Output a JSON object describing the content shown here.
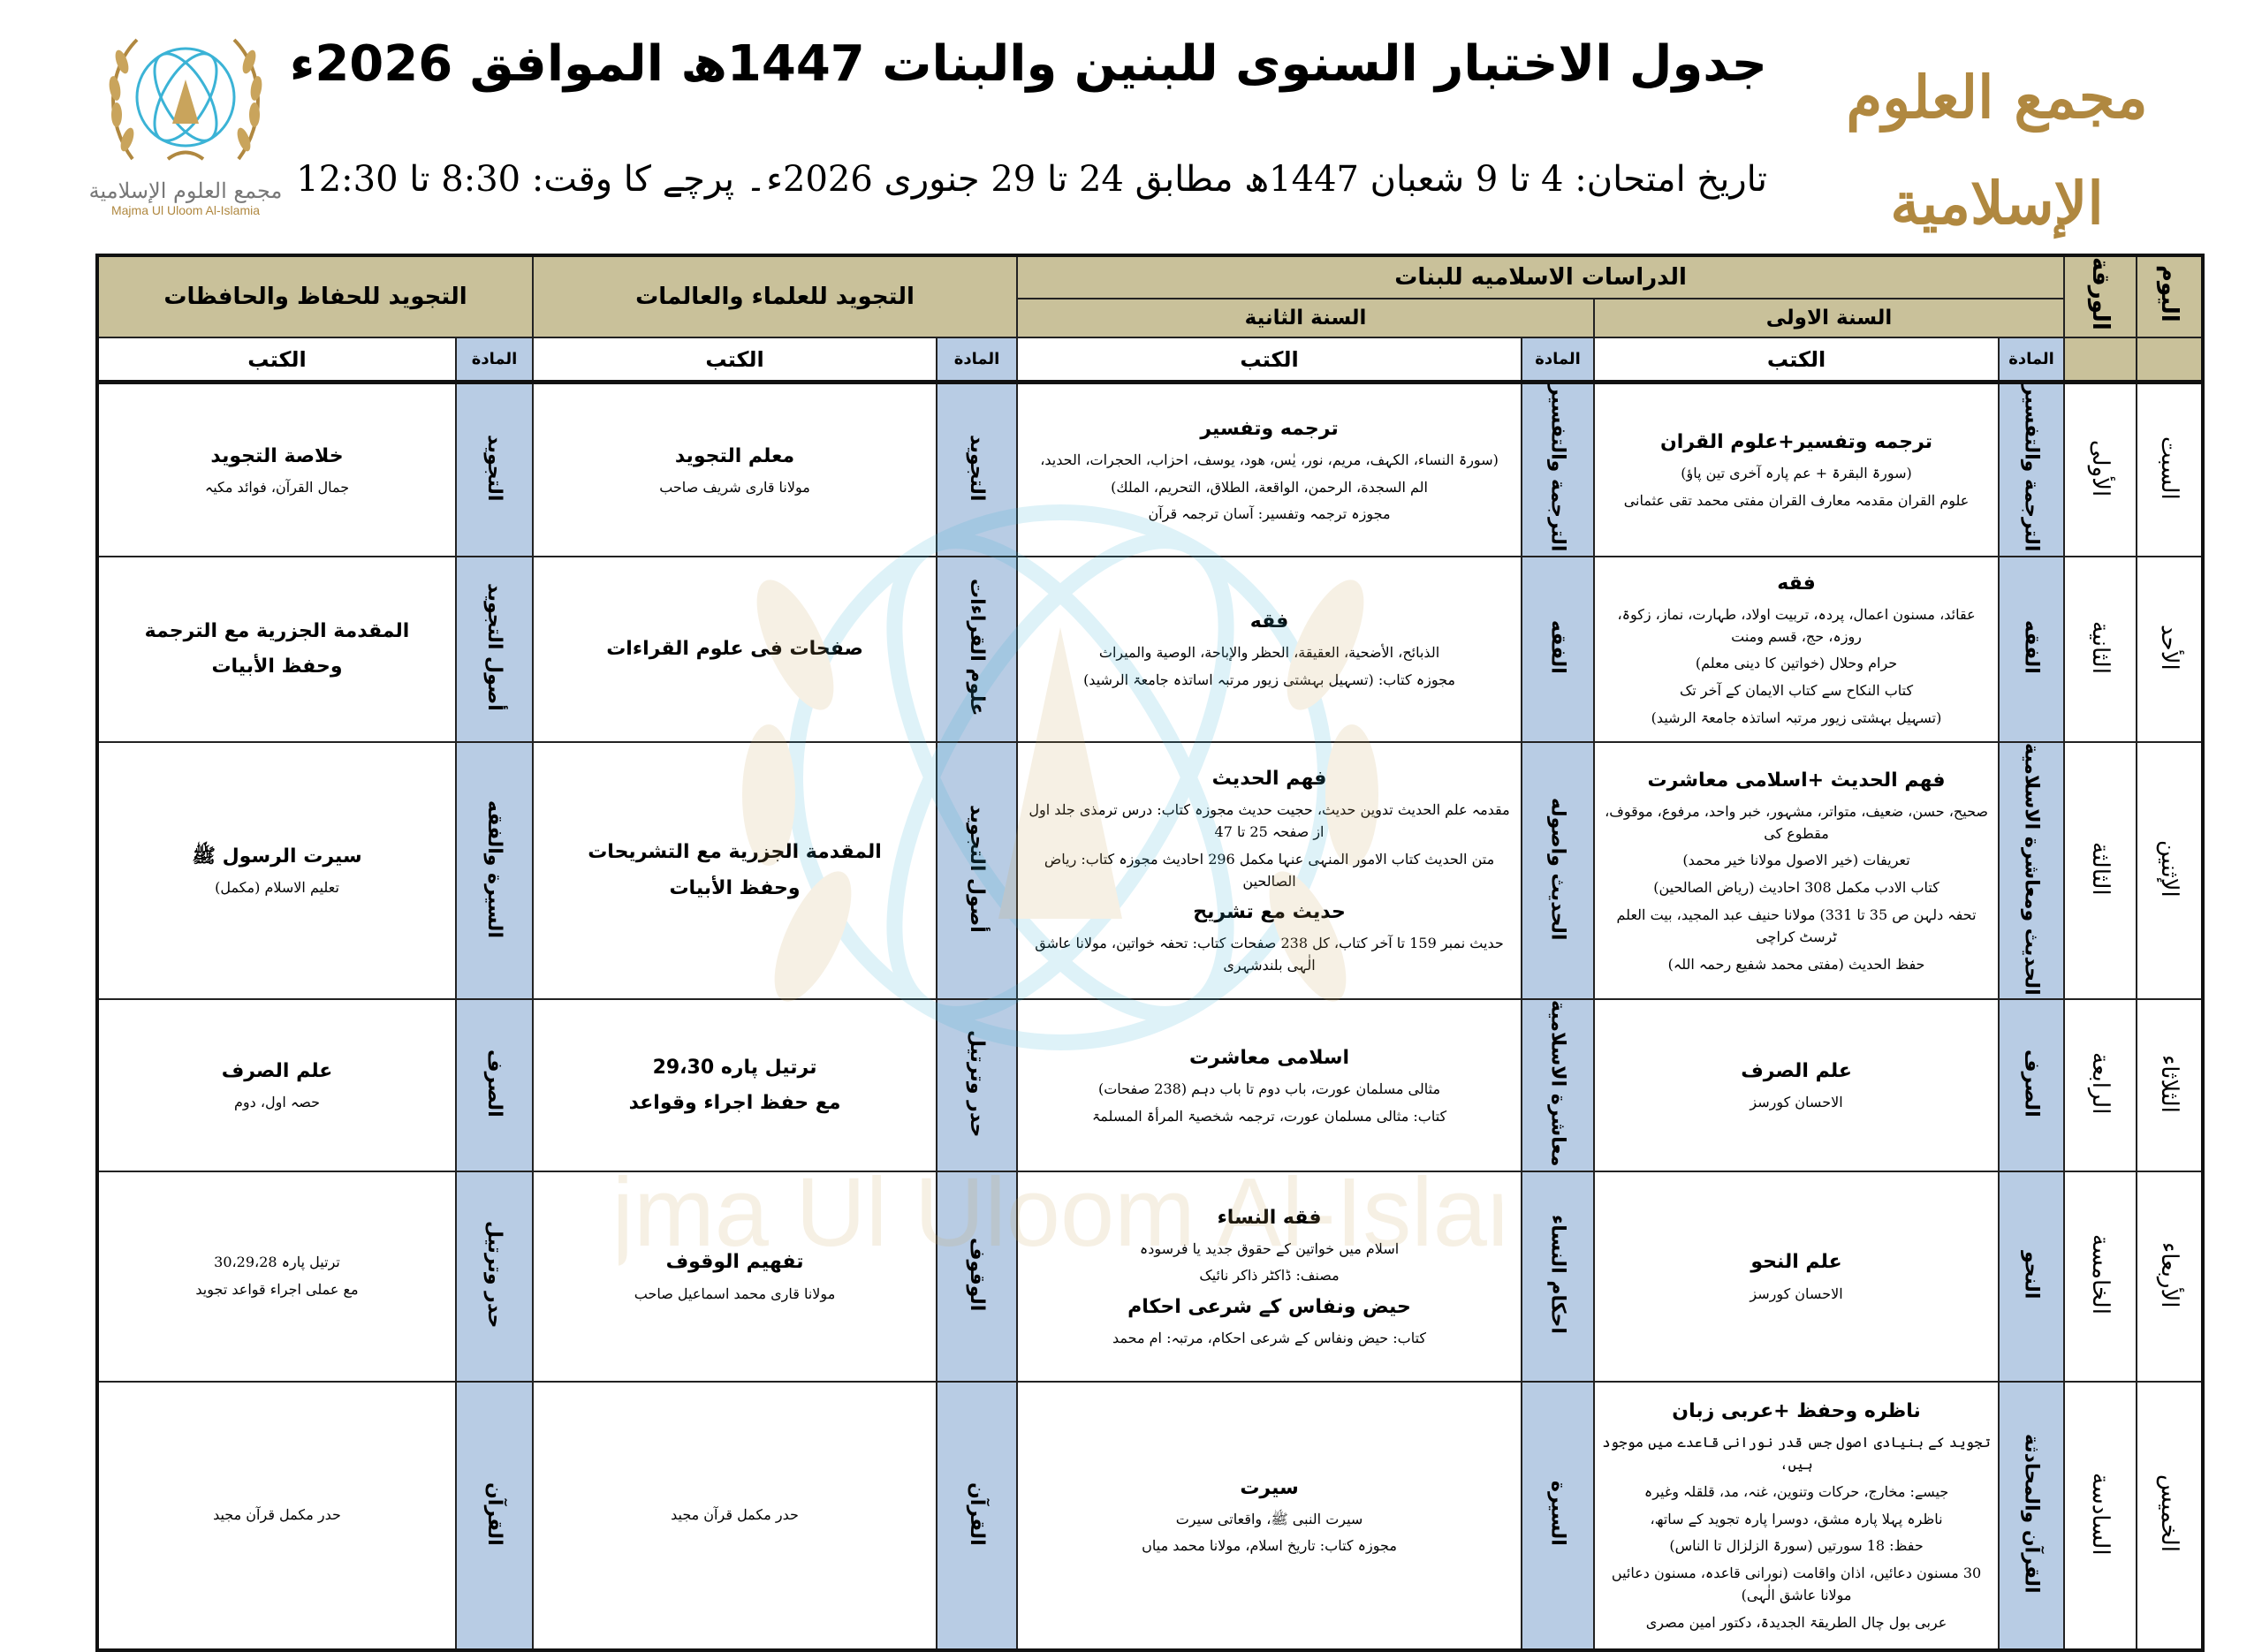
{
  "header": {
    "title": "جدول الاختبار السنوی للبنين والبنات 1447ھ الموافق 2026ء",
    "date_line": "تاریخ امتحان: 4 تا 9 شعبان 1447ھ مطابق 24 تا 29 جنوری 2026ء۔ پرچے کا وقت: 8:30 تا 12:30"
  },
  "logo": {
    "arabic_name": "مجمع العلوم الإسلامية",
    "english_name": "Majma Ul Uloom Al-Islamia",
    "gold": "#b08840",
    "blue": "#1c84c6"
  },
  "table": {
    "day_header": "اليوم",
    "paper_header": "الورقة",
    "group_girls": "الدراسات الاسلاميه للبنات",
    "year1": "السنة الاولى",
    "year2": "السنة الثانية",
    "group_ulama": "التجويد للعلماء والعالمات",
    "group_huffaz": "التجويد للحفاظ والحافظات",
    "subject_header": "المادة",
    "books_header": "الكتب",
    "header_color": "#c9c19a",
    "subject_color": "#b8cce4",
    "rows": [
      {
        "day": "السبت",
        "paper": "الأولى",
        "y1": {
          "subject": "الترجمة والتفسير",
          "books": [
            {
              "text": "ترجمه وتفسير+علوم القران",
              "bold": true
            },
            {
              "text": "(سورۃ البقرۃ + عم پارہ آخری تین پاؤ)",
              "bold": false
            },
            {
              "text": "علوم القران مقدمہ معارف القران مفتی محمد تقی عثمانی",
              "bold": false
            }
          ]
        },
        "y2": {
          "subject": "الترجمة والتفسير",
          "books": [
            {
              "text": "ترجمه وتفسير",
              "bold": true
            },
            {
              "text": "(سورۃ النساء، الکہف، مریم، نور، یٰس، ھود، یوسف، احزاب، الحجرات، الحدید،",
              "bold": false
            },
            {
              "text": "الم السجدة، الرحمن، الواقعة، الطلاق، التحريم، الملك)",
              "bold": false
            },
            {
              "text": "مجوزہ ترجمہ وتفسیر: آسان ترجمہ قرآن",
              "bold": false
            }
          ]
        },
        "ulama": {
          "subject": "التجويد",
          "books": [
            {
              "text": "معلم التجويد",
              "bold": true
            },
            {
              "text": "مولانا قاری شریف صاحب",
              "bold": false
            }
          ]
        },
        "huffaz": {
          "subject": "التجويد",
          "books": [
            {
              "text": "خلاصة التجويد",
              "bold": true
            },
            {
              "text": "جمال القرآن، فوائد مکیہ",
              "bold": false
            }
          ]
        }
      },
      {
        "day": "الأحد",
        "paper": "الثانية",
        "y1": {
          "subject": "الفقه",
          "books": [
            {
              "text": "فقه",
              "bold": true
            },
            {
              "text": "عقائد، مسنون اعمال، پردہ، تربیت اولاد، طہارت، نماز، زکوۃ، روزہ، حج، قسم ومنت",
              "bold": false
            },
            {
              "text": "حرام وحلال (خواتین کا دینی معلم)",
              "bold": false
            },
            {
              "text": "کتاب النکاح سے کتاب الایمان کے آخر تک",
              "bold": false
            },
            {
              "text": "(تسہیل بہشتی زیور مرتبہ اساتذہ جامعۃ الرشید)",
              "bold": false
            }
          ]
        },
        "y2": {
          "subject": "الفقه",
          "books": [
            {
              "text": "فقه",
              "bold": true
            },
            {
              "text": "الذبائح، الأضحية، العقيقة، الحظر والإباحة، الوصية والميراث",
              "bold": false
            },
            {
              "text": "مجوزہ کتاب: (تسہیل بہشتی زیور مرتبہ اساتذہ جامعۃ الرشید)",
              "bold": false
            }
          ]
        },
        "ulama": {
          "subject": "علوم القراءات",
          "books": [
            {
              "text": "صفحات فی علوم القراءات",
              "bold": true
            }
          ]
        },
        "huffaz": {
          "subject": "أصول التجويد",
          "books": [
            {
              "text": "المقدمة الجزرية مع الترجمة",
              "bold": true
            },
            {
              "text": "وحفظ الأبيات",
              "bold": true
            }
          ]
        }
      },
      {
        "day": "الإثنين",
        "paper": "الثالثة",
        "y1": {
          "subject": "الحديث ومعاشرة الاسلامية",
          "books": [
            {
              "text": "فهم الحديث +اسلامی معاشرت",
              "bold": true
            },
            {
              "text": "صحیح، حسن، ضعیف، متواتر، مشہور، خبر واحد، مرفوع، موقوف، مقطوع کی",
              "bold": false
            },
            {
              "text": "تعریفات (خیر الاصول مولانا خیر محمد)",
              "bold": false
            },
            {
              "text": "کتاب الادب مکمل 308 احادیث (ریاض الصالحین)",
              "bold": false
            },
            {
              "text": "تحفہ دلہن ص 35 تا 331) مولانا حنیف عبد المجید، بیت العلم ٹرسٹ کراچی",
              "bold": false
            },
            {
              "text": "حفظ الحدیث (مفتی محمد شفیع رحمہ اللہ)",
              "bold": false
            }
          ]
        },
        "y2": {
          "subject": "الحديث واصوله",
          "books": [
            {
              "text": "فهم الحديث",
              "bold": true
            },
            {
              "text": "مقدمہ علم الحدیث تدوین حدیث، حجیت حدیث مجوزہ کتاب: درس ترمذی جلد اول از صفحہ 25 تا 47",
              "bold": false
            },
            {
              "text": "متن الحدیث کتاب الامور المنہی عنہا مکمل 296 احادیث مجوزہ کتاب: ریاض الصالحین",
              "bold": false
            },
            {
              "text": "حديث مع تشريح",
              "bold": true
            },
            {
              "text": "حدیث نمبر 159 تا آخر کتاب، کل 238 صفحات کتاب: تحفہ خواتین، مولانا عاشق الٰہی بلندشہری",
              "bold": false
            }
          ]
        },
        "ulama": {
          "subject": "أصول التجويد",
          "books": [
            {
              "text": "المقدمة الجزرية مع التشريحات",
              "bold": true
            },
            {
              "text": "وحفظ الأبيات",
              "bold": true
            }
          ]
        },
        "huffaz": {
          "subject": "السيرة والفقه",
          "books": [
            {
              "text": "سیرت الرسول ﷺ",
              "bold": true
            },
            {
              "text": "تعلیم الاسلام (مکمل)",
              "bold": false
            }
          ]
        }
      },
      {
        "day": "الثلاثاء",
        "paper": "الرابعة",
        "y1": {
          "subject": "الصرف",
          "books": [
            {
              "text": "علم الصرف",
              "bold": true
            },
            {
              "text": "الاحسان کورسز",
              "bold": false
            }
          ]
        },
        "y2": {
          "subject": "معاشرة الاسلامية",
          "books": [
            {
              "text": "اسلامی معاشرت",
              "bold": true
            },
            {
              "text": "مثالی مسلمان عورت، باب دوم تا باب دہم (238 صفحات)",
              "bold": false
            },
            {
              "text": "کتاب: مثالی مسلمان عورت، ترجمہ شخصیۃ المرأۃ المسلمۃ",
              "bold": false
            }
          ]
        },
        "ulama": {
          "subject": "حدر وترتيل",
          "books": [
            {
              "text": "ترتيل پاره 29،30",
              "bold": true
            },
            {
              "text": "مع حفظ اجراء وقواعد",
              "bold": true
            }
          ]
        },
        "huffaz": {
          "subject": "الصرف",
          "books": [
            {
              "text": "علم الصرف",
              "bold": true
            },
            {
              "text": "حصہ اول، دوم",
              "bold": false
            }
          ]
        }
      },
      {
        "day": "الأربعاء",
        "paper": "الخامسة",
        "y1": {
          "subject": "النحو",
          "books": [
            {
              "text": "علم النحو",
              "bold": true
            },
            {
              "text": "الاحسان کورسز",
              "bold": false
            }
          ]
        },
        "y2": {
          "subject": "احكام النساء",
          "books": [
            {
              "text": "فقه النساء",
              "bold": true
            },
            {
              "text": "اسلام میں خواتین کے حقوق جدید یا فرسودہ",
              "bold": false
            },
            {
              "text": "مصنف: ڈاکٹر ذاکر نائیک",
              "bold": false
            },
            {
              "text": "حیض ونفاس کے شرعی احکام",
              "bold": true
            },
            {
              "text": "کتاب: حیض ونفاس کے شرعی احکام، مرتبہ: ام محمد",
              "bold": false
            }
          ]
        },
        "ulama": {
          "subject": "الوقوف",
          "books": [
            {
              "text": "تفهيم الوقوف",
              "bold": true
            },
            {
              "text": "مولانا قاری محمد اسماعیل صاحب",
              "bold": false
            }
          ]
        },
        "huffaz": {
          "subject": "حدر وترتيل",
          "books": [
            {
              "text": "ترتیل پارہ 30،29،28",
              "bold": false
            },
            {
              "text": "مع عملی اجراء قواعد تجوید",
              "bold": false
            }
          ]
        }
      },
      {
        "day": "الخميس",
        "paper": "السادسة",
        "y1": {
          "subject": "القرآن والمحادثة",
          "books": [
            {
              "text": "ناظره وحفظ +عربی زبان",
              "bold": true
            },
            {
              "text": "تجوید کے بنیادی اصول جس قدر نورانی قاعدے میں موجود ہیں،",
              "bold": false
            },
            {
              "text": "جیسے: مخارج، حرکات وتنوین، غنہ، مد، قلقلہ وغیرہ",
              "bold": false
            },
            {
              "text": "ناظرہ پہلا پارہ مشق، دوسرا پارہ تجوید کے ساتھ،",
              "bold": false
            },
            {
              "text": "حفظ: 18 سورتیں (سورۃ الزلزال تا الناس)",
              "bold": false
            },
            {
              "text": "30 مسنون دعائیں، اذان واقامت (نورانی قاعدہ، مسنون دعائیں مولانا عاشق الٰہی)",
              "bold": false
            },
            {
              "text": "عربی بول چال الطریقۃ الجدیدۃ، دکتور امین مصری",
              "bold": false
            }
          ]
        },
        "y2": {
          "subject": "السيرة",
          "books": [
            {
              "text": "سيرت",
              "bold": true
            },
            {
              "text": "سیرت النبی ﷺ، واقعاتی سیرت",
              "bold": false
            },
            {
              "text": "مجوزہ کتاب: تاریخ اسلام، مولانا محمد میاں",
              "bold": false
            }
          ]
        },
        "ulama": {
          "subject": "القرآن",
          "books": [
            {
              "text": "حدر مکمل قرآن مجید",
              "bold": false
            }
          ]
        },
        "huffaz": {
          "subject": "القرآن",
          "books": [
            {
              "text": "حدر مکمل قرآن مجید",
              "bold": false
            }
          ]
        }
      }
    ]
  }
}
